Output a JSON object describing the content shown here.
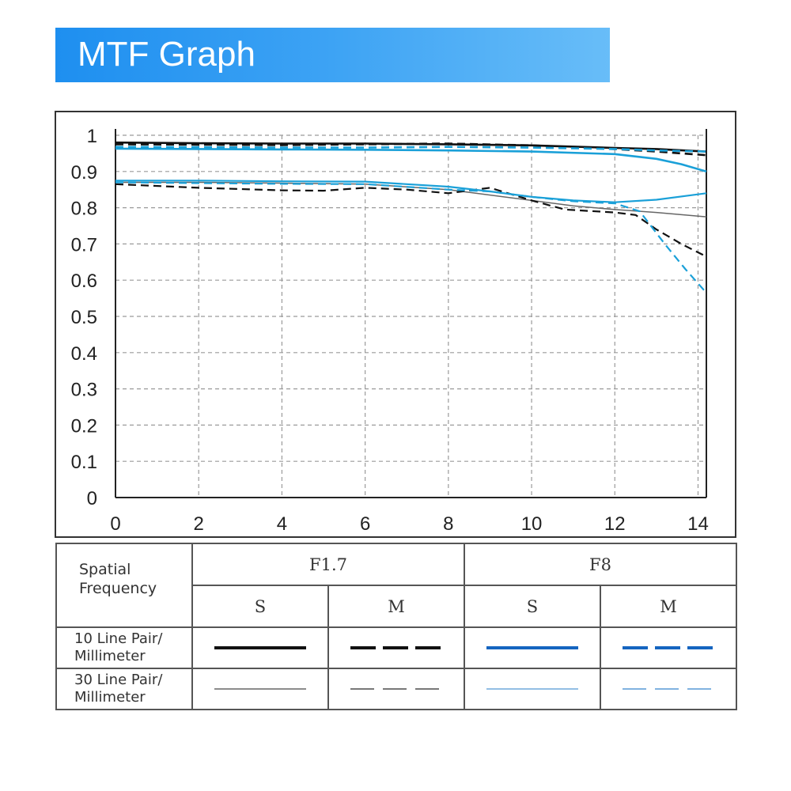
{
  "banner": {
    "title": "MTF Graph"
  },
  "chart_data": {
    "type": "line",
    "title": "MTF Graph",
    "xlabel": "",
    "ylabel": "",
    "xlim": [
      0,
      14.2
    ],
    "ylim": [
      0,
      1
    ],
    "xticks": [
      "0",
      "2",
      "4",
      "6",
      "8",
      "10",
      "12",
      "14"
    ],
    "yticks": [
      "0",
      "0.1",
      "0.2",
      "0.3",
      "0.4",
      "0.5",
      "0.6",
      "0.7",
      "0.8",
      "0.9",
      "1"
    ],
    "grid": true,
    "series": [
      {
        "name": "F1.7 S 10 Line Pair/Millimeter",
        "color": "#111111",
        "dash": "solid",
        "width": 2.6,
        "x": [
          0,
          2,
          4,
          6,
          8,
          10,
          12,
          13,
          14.2
        ],
        "y": [
          0.98,
          0.978,
          0.977,
          0.977,
          0.975,
          0.972,
          0.965,
          0.962,
          0.955
        ]
      },
      {
        "name": "F1.7 M 10 Line Pair/Millimeter",
        "color": "#111111",
        "dash": "dashed",
        "width": 2.6,
        "x": [
          0,
          2,
          4,
          6,
          8,
          10,
          12,
          13,
          14.2
        ],
        "y": [
          0.975,
          0.974,
          0.973,
          0.975,
          0.977,
          0.972,
          0.962,
          0.955,
          0.945
        ]
      },
      {
        "name": "F8 S 10 Line Pair/Millimeter",
        "color": "#1aa0d8",
        "dash": "solid",
        "width": 2.6,
        "x": [
          0,
          2,
          4,
          6,
          8,
          10,
          12,
          13,
          13.6,
          14.2
        ],
        "y": [
          0.963,
          0.962,
          0.961,
          0.96,
          0.958,
          0.955,
          0.948,
          0.935,
          0.92,
          0.9
        ]
      },
      {
        "name": "F8 M 10 Line Pair/Millimeter",
        "color": "#1aa0d8",
        "dash": "dashed",
        "width": 2.6,
        "x": [
          0,
          2,
          4,
          6,
          8,
          10,
          12,
          13,
          14.2
        ],
        "y": [
          0.968,
          0.967,
          0.966,
          0.966,
          0.968,
          0.966,
          0.962,
          0.958,
          0.955
        ]
      },
      {
        "name": "F1.7 S 30 Line Pair/Millimeter",
        "color": "#666666",
        "dash": "solid",
        "width": 1.5,
        "x": [
          0,
          2,
          4,
          6,
          8,
          10,
          11,
          12,
          13,
          14.2
        ],
        "y": [
          0.87,
          0.87,
          0.868,
          0.865,
          0.85,
          0.82,
          0.805,
          0.795,
          0.787,
          0.775
        ]
      },
      {
        "name": "F1.7 M 30 Line Pair/Millimeter",
        "color": "#111111",
        "dash": "dashed",
        "width": 2.2,
        "x": [
          0,
          2,
          4,
          5,
          6,
          7,
          8,
          9,
          10,
          10.8,
          12,
          12.5,
          13,
          13.6,
          14.2
        ],
        "y": [
          0.865,
          0.855,
          0.848,
          0.847,
          0.855,
          0.85,
          0.84,
          0.855,
          0.82,
          0.795,
          0.787,
          0.78,
          0.74,
          0.7,
          0.665
        ]
      },
      {
        "name": "F8 S 30 Line Pair/Millimeter",
        "color": "#1aa0d8",
        "dash": "solid",
        "width": 2.2,
        "x": [
          0,
          2,
          4,
          6,
          8,
          9,
          10,
          11,
          12,
          13,
          14.2
        ],
        "y": [
          0.875,
          0.875,
          0.873,
          0.872,
          0.858,
          0.845,
          0.83,
          0.82,
          0.815,
          0.822,
          0.84
        ]
      },
      {
        "name": "F8 M 30 Line Pair/Millimeter",
        "color": "#1aa0d8",
        "dash": "dashed",
        "width": 2.2,
        "x": [
          0,
          2,
          4,
          6,
          8,
          9,
          10,
          11,
          12,
          12.6,
          13.2,
          13.7,
          14.2
        ],
        "y": [
          0.87,
          0.868,
          0.866,
          0.865,
          0.85,
          0.845,
          0.83,
          0.818,
          0.812,
          0.79,
          0.7,
          0.63,
          0.565
        ]
      }
    ]
  },
  "legend": {
    "corner_line1": "Spatial",
    "corner_line2": "Frequency",
    "group1": "F1.7",
    "group2": "F8",
    "sub_s": "S",
    "sub_m": "M",
    "row1_line1": "10 Line Pair/",
    "row1_line2": "Millimeter",
    "row2_line1": "30 Line Pair/",
    "row2_line2": "Millimeter",
    "colors": {
      "black": "#111111",
      "blue": "#1565c0",
      "gray": "#666666",
      "lightblue": "#6fa8dc"
    }
  }
}
